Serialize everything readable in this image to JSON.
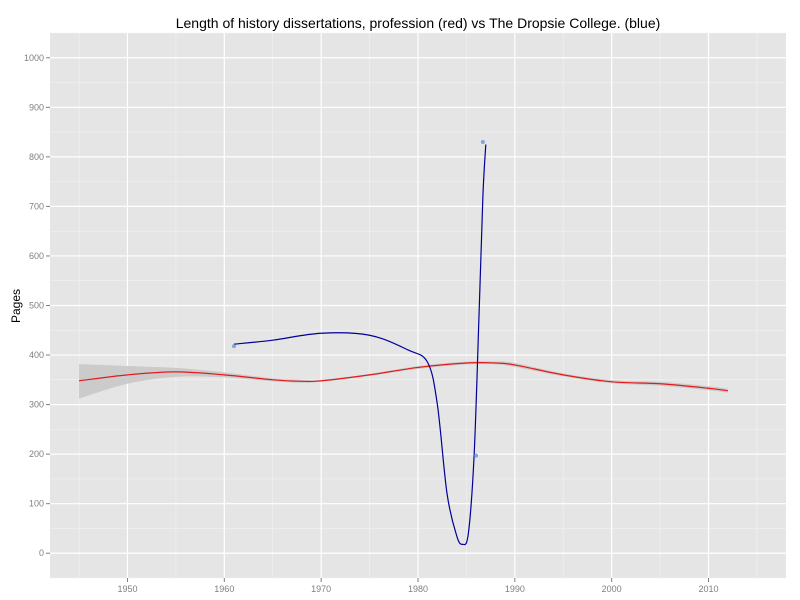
{
  "chart_data": {
    "type": "line",
    "title": "Length of history dissertations, profession (red) vs The Dropsie College. (blue)",
    "xlabel": "",
    "ylabel": "Pages",
    "xlim": [
      1942,
      2018
    ],
    "ylim": [
      -50,
      1050
    ],
    "x_ticks": [
      1950,
      1960,
      1970,
      1980,
      1990,
      2000,
      2010
    ],
    "y_ticks": [
      0,
      100,
      200,
      300,
      400,
      500,
      600,
      700,
      800,
      900,
      1000
    ],
    "grid": true,
    "legend": "none",
    "colors": {
      "panel": "#e5e5e5",
      "grid_major": "#ffffff",
      "grid_minor": "#f2f2f2",
      "band": "#c8c8c8",
      "profession": "#e41a1c",
      "dropsie_line": "#000099",
      "dropsie_points": "#6b9bd8"
    },
    "series": [
      {
        "kind": "smooth",
        "color": "#e41a1c",
        "x": [
          1945,
          1950,
          1955,
          1960,
          1965,
          1968,
          1970,
          1975,
          1980,
          1985,
          1988,
          1990,
          1995,
          2000,
          2005,
          2010,
          2012
        ],
        "y": [
          348,
          360,
          366,
          360,
          350,
          347,
          348,
          360,
          375,
          384,
          384,
          380,
          360,
          346,
          342,
          333,
          328
        ],
        "band_upper": [
          382,
          378,
          374,
          365,
          353,
          350,
          350,
          362,
          378,
          387,
          387,
          384,
          363,
          349,
          346,
          337,
          332
        ],
        "band_lower": [
          312,
          342,
          356,
          355,
          347,
          344,
          346,
          358,
          372,
          381,
          381,
          376,
          357,
          343,
          338,
          329,
          324
        ]
      },
      {
        "kind": "smooth",
        "color": "#000099",
        "x": [
          1961,
          1965,
          1970,
          1975,
          1979,
          1981,
          1982,
          1983,
          1984,
          1984.6,
          1985.2,
          1985.8,
          1986.3,
          1986.7,
          1987
        ],
        "y": [
          422,
          430,
          444,
          440,
          410,
          385,
          300,
          120,
          35,
          18,
          40,
          200,
          480,
          720,
          825
        ]
      },
      {
        "kind": "points",
        "color": "#6b9bd8",
        "x": [
          1961,
          1986,
          1986.7
        ],
        "y": [
          418,
          197,
          830
        ]
      }
    ]
  }
}
